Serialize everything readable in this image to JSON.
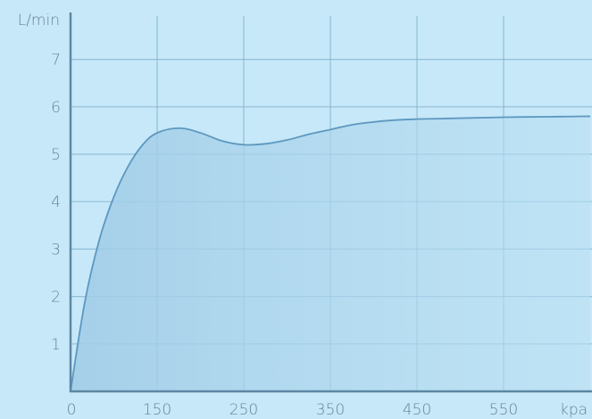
{
  "chart_data": {
    "type": "area",
    "title": "",
    "xlabel": "kpa",
    "ylabel": "L/min",
    "x_ticks": [
      0,
      150,
      250,
      350,
      450,
      550
    ],
    "y_ticks": [
      1,
      2,
      3,
      4,
      5,
      6,
      7
    ],
    "xlim": [
      0,
      650
    ],
    "ylim": [
      0,
      8
    ],
    "grid": true,
    "legend": "none",
    "series": [
      {
        "x": [
          0,
          25,
          50,
          75,
          100,
          125,
          150,
          175,
          200,
          225,
          250,
          275,
          300,
          325,
          350,
          375,
          400,
          425,
          450,
          475,
          500,
          550,
          600,
          650
        ],
        "y": [
          0,
          1.9,
          3.2,
          4.1,
          4.75,
          5.2,
          5.45,
          5.55,
          5.45,
          5.28,
          5.2,
          5.22,
          5.3,
          5.42,
          5.52,
          5.62,
          5.68,
          5.72,
          5.74,
          5.75,
          5.76,
          5.78,
          5.79,
          5.8
        ]
      }
    ],
    "colors": {
      "background": "#c6e8f8",
      "grid": "#7fb2cf",
      "axis": "#5d87a3",
      "line": "#5d98c0",
      "fill": "#a9d2ea",
      "text": "#6a8496"
    }
  }
}
